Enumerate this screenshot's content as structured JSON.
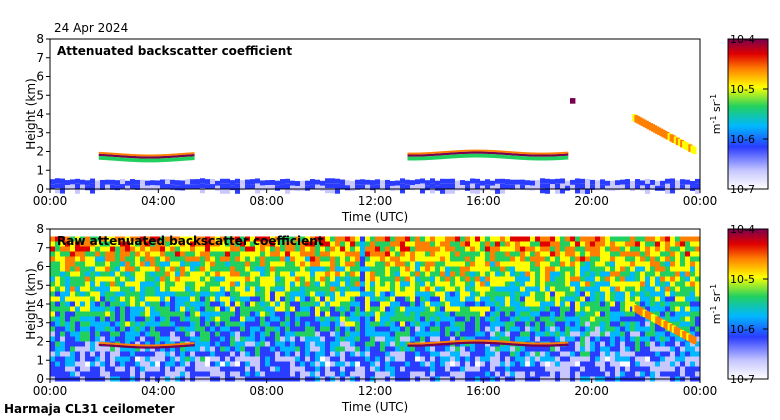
{
  "figure": {
    "date": "24 Apr 2024",
    "footer": "Harmaja CL31 ceilometer",
    "colors": {
      "frame": "#000000",
      "background": "#ffffff"
    }
  },
  "chart_data": [
    {
      "type": "heatmap",
      "title": "Attenuated backscatter coefficient",
      "xlabel": "Time (UTC)",
      "ylabel": "Height (km)",
      "xlim": [
        0,
        24
      ],
      "ylim": [
        0,
        8
      ],
      "x_ticks": [
        "00:00",
        "04:00",
        "08:00",
        "12:00",
        "16:00",
        "20:00",
        "00:00"
      ],
      "y_ticks": [
        "0",
        "1",
        "2",
        "3",
        "4",
        "5",
        "6",
        "7",
        "8"
      ],
      "colorbar": {
        "scale": "log",
        "label": "m-1 sr-1",
        "ticks": [
          "10-7",
          "10-6",
          "10-5",
          "10-4"
        ],
        "range": [
          1e-07,
          0.0001
        ]
      },
      "features": [
        {
          "name": "boundary layer",
          "t": [
            0,
            24
          ],
          "top_km": 0.5,
          "level": "low"
        },
        {
          "name": "aerosol layer",
          "t": [
            1.8,
            5.3
          ],
          "base_km": 1.7,
          "top_km": 2.0,
          "level": "high"
        },
        {
          "name": "aerosol layer",
          "t": [
            13.2,
            19.1
          ],
          "base_km": 1.8,
          "level": "high"
        },
        {
          "name": "elevated layer",
          "t": [
            19.2,
            19.4
          ],
          "height_km": 4.7,
          "level": "high"
        },
        {
          "name": "descending layer",
          "t": [
            21.5,
            23.8
          ],
          "height_km": [
            3.8,
            2.0
          ],
          "level": "medium"
        }
      ]
    },
    {
      "type": "heatmap",
      "title": "Raw attenuated backscatter coefficient",
      "xlabel": "Time (UTC)",
      "ylabel": "Height (km)",
      "xlim": [
        0,
        24
      ],
      "ylim": [
        0,
        8
      ],
      "x_ticks": [
        "00:00",
        "04:00",
        "08:00",
        "12:00",
        "16:00",
        "20:00",
        "00:00"
      ],
      "y_ticks": [
        "0",
        "1",
        "2",
        "3",
        "4",
        "5",
        "6",
        "7",
        "8"
      ],
      "colorbar": {
        "scale": "log",
        "label": "m-1 sr-1",
        "ticks": [
          "10-7",
          "10-6",
          "10-5",
          "10-4"
        ],
        "range": [
          1e-07,
          0.0001
        ]
      },
      "features": [
        {
          "name": "noise field",
          "t": [
            0,
            24
          ],
          "height_km": [
            0,
            7.6
          ],
          "level": "medium"
        },
        {
          "name": "aerosol layer",
          "t": [
            1.8,
            5.3
          ],
          "base_km": 1.7,
          "level": "high"
        },
        {
          "name": "aerosol layer",
          "t": [
            13.2,
            19.1
          ],
          "base_km": 1.8,
          "level": "high"
        },
        {
          "name": "low-signal column",
          "t": [
            11.3,
            11.6
          ],
          "height_km": [
            0,
            8
          ],
          "level": "low"
        },
        {
          "name": "descending layer",
          "t": [
            21.5,
            23.8
          ],
          "height_km": [
            3.8,
            2.0
          ],
          "level": "medium"
        }
      ]
    }
  ]
}
